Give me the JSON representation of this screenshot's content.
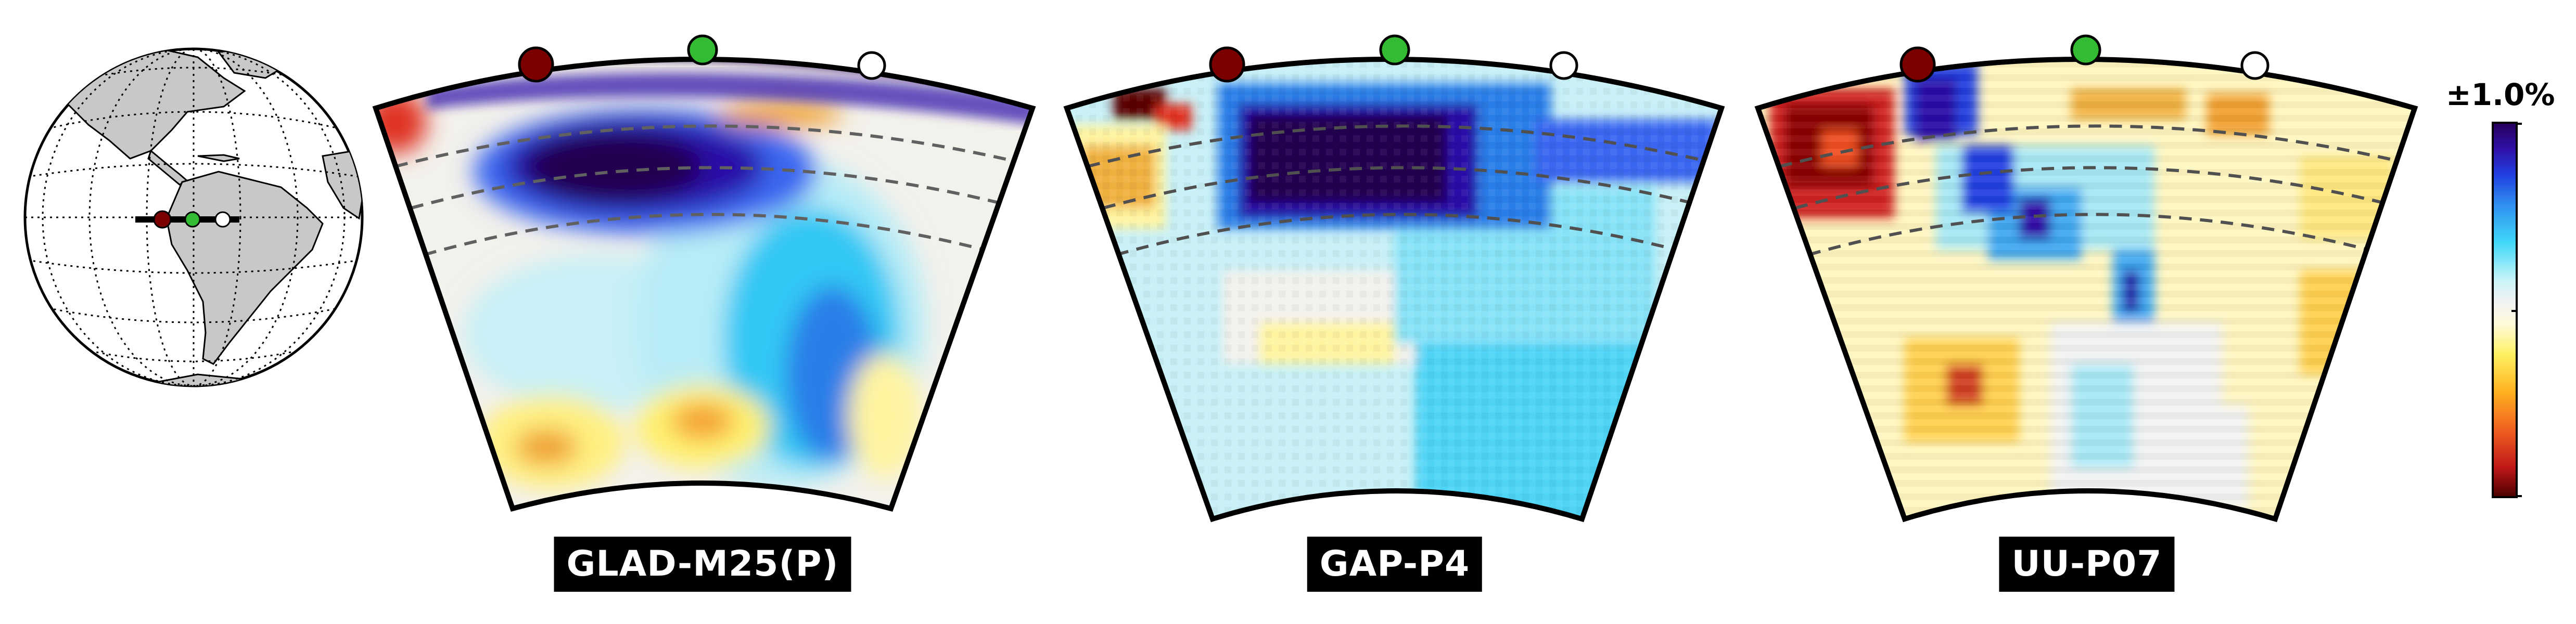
{
  "panels": [
    {
      "model": "GLAD-M25(P)"
    },
    {
      "model": "GAP-P4"
    },
    {
      "model": "UU-P07"
    }
  ],
  "colorbar": {
    "label": "±1.0%"
  },
  "colors": {
    "west_marker": "#7a0000",
    "mid_marker": "#33bb33",
    "east_marker": "#ffffff",
    "fast": "#2a0066",
    "slow": "#5a0000",
    "land": "#c8c8c8"
  }
}
